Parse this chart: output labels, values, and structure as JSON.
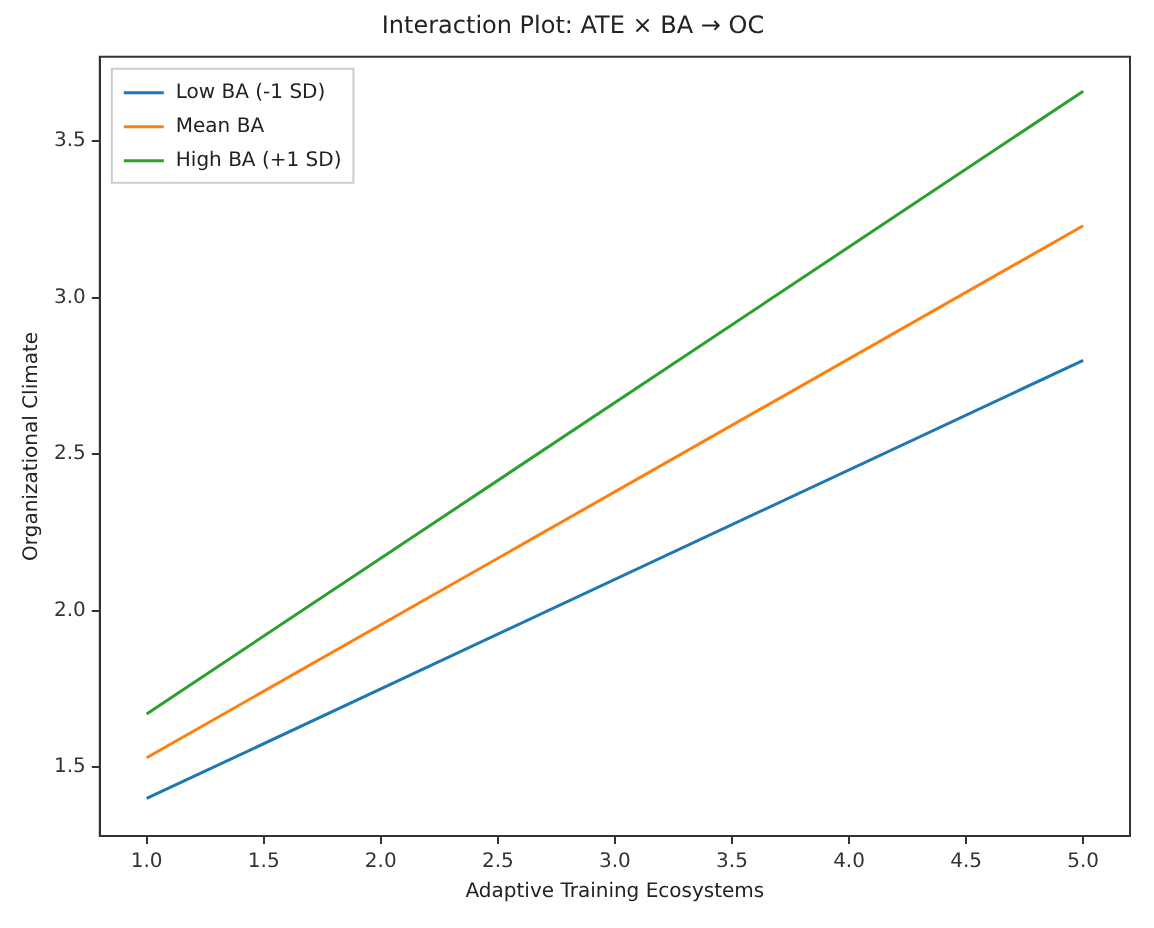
{
  "chart_data": {
    "type": "line",
    "title": "Interaction Plot: ATE × BA → OC",
    "xlabel": "Adaptive Training Ecosystems",
    "ylabel": "Organizational Climate",
    "x": [
      1.0,
      5.0
    ],
    "series": [
      {
        "name": "Low BA (-1 SD)",
        "color": "#1f77b4",
        "values": [
          1.4,
          2.8
        ]
      },
      {
        "name": "Mean BA",
        "color": "#ff7f0e",
        "values": [
          1.53,
          3.23
        ]
      },
      {
        "name": "High BA (+1 SD)",
        "color": "#2ca02c",
        "values": [
          1.67,
          3.66
        ]
      }
    ],
    "xlim": [
      0.8,
      5.2
    ],
    "xticks": [
      {
        "value": 1,
        "label": "1.0"
      },
      1.5,
      {
        "value": 2,
        "label": "2.0"
      },
      2.5,
      {
        "value": 3,
        "label": "3.0"
      },
      3.5,
      {
        "value": 4,
        "label": "4.0"
      },
      4.5,
      {
        "value": 5,
        "label": "5.0"
      }
    ],
    "ylim": [
      1.28,
      3.77
    ],
    "yticks": [
      1.5,
      {
        "value": 2,
        "label": "2.0"
      },
      2.5,
      {
        "value": 3,
        "label": "3.0"
      },
      3.5
    ],
    "grid": false,
    "legend": "top left",
    "marker": "none",
    "line_style": "solid"
  }
}
